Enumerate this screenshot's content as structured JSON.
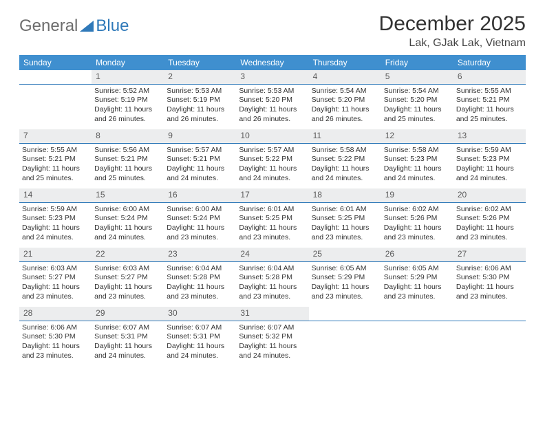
{
  "logo": {
    "part1": "General",
    "part2": "Blue"
  },
  "title": "December 2025",
  "location": "Lak, GJak Lak, Vietnam",
  "colors": {
    "header_bg": "#3f8fcf",
    "header_text": "#ffffff",
    "daynum_bg": "#ecedee",
    "daynum_border": "#2f79b9",
    "body_text": "#333333",
    "logo_gray": "#6d6d6d",
    "logo_blue": "#2f79b9"
  },
  "daysOfWeek": [
    "Sunday",
    "Monday",
    "Tuesday",
    "Wednesday",
    "Thursday",
    "Friday",
    "Saturday"
  ],
  "weeks": [
    [
      {
        "n": "",
        "sr": "",
        "ss": "",
        "dl": ""
      },
      {
        "n": "1",
        "sr": "5:52 AM",
        "ss": "5:19 PM",
        "dl": "11 hours and 26 minutes."
      },
      {
        "n": "2",
        "sr": "5:53 AM",
        "ss": "5:19 PM",
        "dl": "11 hours and 26 minutes."
      },
      {
        "n": "3",
        "sr": "5:53 AM",
        "ss": "5:20 PM",
        "dl": "11 hours and 26 minutes."
      },
      {
        "n": "4",
        "sr": "5:54 AM",
        "ss": "5:20 PM",
        "dl": "11 hours and 26 minutes."
      },
      {
        "n": "5",
        "sr": "5:54 AM",
        "ss": "5:20 PM",
        "dl": "11 hours and 25 minutes."
      },
      {
        "n": "6",
        "sr": "5:55 AM",
        "ss": "5:21 PM",
        "dl": "11 hours and 25 minutes."
      }
    ],
    [
      {
        "n": "7",
        "sr": "5:55 AM",
        "ss": "5:21 PM",
        "dl": "11 hours and 25 minutes."
      },
      {
        "n": "8",
        "sr": "5:56 AM",
        "ss": "5:21 PM",
        "dl": "11 hours and 25 minutes."
      },
      {
        "n": "9",
        "sr": "5:57 AM",
        "ss": "5:21 PM",
        "dl": "11 hours and 24 minutes."
      },
      {
        "n": "10",
        "sr": "5:57 AM",
        "ss": "5:22 PM",
        "dl": "11 hours and 24 minutes."
      },
      {
        "n": "11",
        "sr": "5:58 AM",
        "ss": "5:22 PM",
        "dl": "11 hours and 24 minutes."
      },
      {
        "n": "12",
        "sr": "5:58 AM",
        "ss": "5:23 PM",
        "dl": "11 hours and 24 minutes."
      },
      {
        "n": "13",
        "sr": "5:59 AM",
        "ss": "5:23 PM",
        "dl": "11 hours and 24 minutes."
      }
    ],
    [
      {
        "n": "14",
        "sr": "5:59 AM",
        "ss": "5:23 PM",
        "dl": "11 hours and 24 minutes."
      },
      {
        "n": "15",
        "sr": "6:00 AM",
        "ss": "5:24 PM",
        "dl": "11 hours and 24 minutes."
      },
      {
        "n": "16",
        "sr": "6:00 AM",
        "ss": "5:24 PM",
        "dl": "11 hours and 23 minutes."
      },
      {
        "n": "17",
        "sr": "6:01 AM",
        "ss": "5:25 PM",
        "dl": "11 hours and 23 minutes."
      },
      {
        "n": "18",
        "sr": "6:01 AM",
        "ss": "5:25 PM",
        "dl": "11 hours and 23 minutes."
      },
      {
        "n": "19",
        "sr": "6:02 AM",
        "ss": "5:26 PM",
        "dl": "11 hours and 23 minutes."
      },
      {
        "n": "20",
        "sr": "6:02 AM",
        "ss": "5:26 PM",
        "dl": "11 hours and 23 minutes."
      }
    ],
    [
      {
        "n": "21",
        "sr": "6:03 AM",
        "ss": "5:27 PM",
        "dl": "11 hours and 23 minutes."
      },
      {
        "n": "22",
        "sr": "6:03 AM",
        "ss": "5:27 PM",
        "dl": "11 hours and 23 minutes."
      },
      {
        "n": "23",
        "sr": "6:04 AM",
        "ss": "5:28 PM",
        "dl": "11 hours and 23 minutes."
      },
      {
        "n": "24",
        "sr": "6:04 AM",
        "ss": "5:28 PM",
        "dl": "11 hours and 23 minutes."
      },
      {
        "n": "25",
        "sr": "6:05 AM",
        "ss": "5:29 PM",
        "dl": "11 hours and 23 minutes."
      },
      {
        "n": "26",
        "sr": "6:05 AM",
        "ss": "5:29 PM",
        "dl": "11 hours and 23 minutes."
      },
      {
        "n": "27",
        "sr": "6:06 AM",
        "ss": "5:30 PM",
        "dl": "11 hours and 23 minutes."
      }
    ],
    [
      {
        "n": "28",
        "sr": "6:06 AM",
        "ss": "5:30 PM",
        "dl": "11 hours and 23 minutes."
      },
      {
        "n": "29",
        "sr": "6:07 AM",
        "ss": "5:31 PM",
        "dl": "11 hours and 24 minutes."
      },
      {
        "n": "30",
        "sr": "6:07 AM",
        "ss": "5:31 PM",
        "dl": "11 hours and 24 minutes."
      },
      {
        "n": "31",
        "sr": "6:07 AM",
        "ss": "5:32 PM",
        "dl": "11 hours and 24 minutes."
      },
      {
        "n": "",
        "sr": "",
        "ss": "",
        "dl": ""
      },
      {
        "n": "",
        "sr": "",
        "ss": "",
        "dl": ""
      },
      {
        "n": "",
        "sr": "",
        "ss": "",
        "dl": ""
      }
    ]
  ],
  "labels": {
    "sunrise": "Sunrise:",
    "sunset": "Sunset:",
    "daylight": "Daylight:"
  }
}
